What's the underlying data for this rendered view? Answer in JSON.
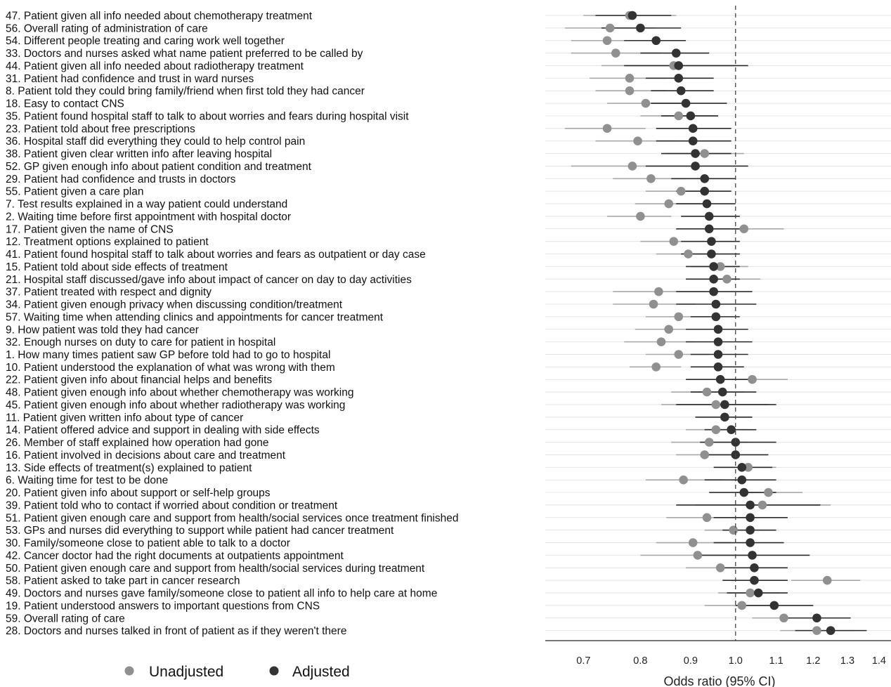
{
  "chart_data": {
    "type": "forest",
    "xlabel": "Odds ratio (95% CI)",
    "xticks": [
      0.7,
      0.8,
      0.9,
      1.0,
      1.1,
      1.2,
      1.3,
      1.4
    ],
    "reference_line": 1.0,
    "scale": "log",
    "legend": {
      "position": "bottom-left",
      "items": [
        {
          "name": "Unadjusted",
          "color": "#909090"
        },
        {
          "name": "Adjusted",
          "color": "#333333"
        }
      ]
    },
    "rows": [
      {
        "label": "47.  Patient given all info needed about chemotherapy treatment",
        "unadj": [
          0.78,
          0.7,
          0.87
        ],
        "adj": [
          0.785,
          0.72,
          0.86
        ]
      },
      {
        "label": "56.  Overall rating of administration of care",
        "unadj": [
          0.745,
          0.67,
          0.83
        ],
        "adj": [
          0.8,
          0.73,
          0.88
        ]
      },
      {
        "label": "54.  Different people treating and caring work well together",
        "unadj": [
          0.74,
          0.68,
          0.81
        ],
        "adj": [
          0.83,
          0.77,
          0.89
        ]
      },
      {
        "label": "33.  Doctors and nurses asked what name patient preferred to be called by",
        "unadj": [
          0.755,
          0.68,
          0.84
        ],
        "adj": [
          0.87,
          0.8,
          0.94
        ]
      },
      {
        "label": "44.  Patient given all info needed about radiotherapy treatment",
        "unadj": [
          0.865,
          0.73,
          1.0
        ],
        "adj": [
          0.875,
          0.77,
          1.03
        ]
      },
      {
        "label": "31.  Patient had confidence and trust in ward nurses",
        "unadj": [
          0.78,
          0.71,
          0.85
        ],
        "adj": [
          0.875,
          0.81,
          0.95
        ]
      },
      {
        "label": " 8.  Patient told they could bring family/friend when first told they had cancer",
        "unadj": [
          0.78,
          0.72,
          0.85
        ],
        "adj": [
          0.88,
          0.82,
          0.95
        ]
      },
      {
        "label": "18.  Easy to contact CNS",
        "unadj": [
          0.81,
          0.74,
          0.88
        ],
        "adj": [
          0.89,
          0.82,
          0.98
        ]
      },
      {
        "label": "35.  Patient found hospital staff to talk to about worries and fears during hospital visit",
        "unadj": [
          0.875,
          0.8,
          0.96
        ],
        "adj": [
          0.9,
          0.84,
          0.96
        ]
      },
      {
        "label": "23.  Patient told about free prescriptions",
        "unadj": [
          0.74,
          0.67,
          0.81
        ],
        "adj": [
          0.905,
          0.83,
          0.99
        ]
      },
      {
        "label": "36.  Hospital staff did everything they could to help control pain",
        "unadj": [
          0.795,
          0.72,
          0.87
        ],
        "adj": [
          0.905,
          0.83,
          0.99
        ]
      },
      {
        "label": "38.  Patient given clear written info after leaving hospital",
        "unadj": [
          0.93,
          0.85,
          1.02
        ],
        "adj": [
          0.91,
          0.84,
          0.99
        ]
      },
      {
        "label": "52.  GP given enough info about patient condition and treatment",
        "unadj": [
          0.785,
          0.68,
          0.9
        ],
        "adj": [
          0.91,
          0.81,
          1.03
        ]
      },
      {
        "label": "29.  Patient had confidence and trusts in doctors",
        "unadj": [
          0.82,
          0.75,
          0.89
        ],
        "adj": [
          0.93,
          0.86,
          1.0
        ]
      },
      {
        "label": "55.  Patient given a care plan",
        "unadj": [
          0.88,
          0.81,
          0.95
        ],
        "adj": [
          0.93,
          0.87,
          0.99
        ]
      },
      {
        "label": " 7.  Test results explained in a way patient could understand",
        "unadj": [
          0.855,
          0.79,
          0.92
        ],
        "adj": [
          0.935,
          0.87,
          1.0
        ]
      },
      {
        "label": " 2.  Waiting time before first appointment with hospital doctor",
        "unadj": [
          0.8,
          0.74,
          0.86
        ],
        "adj": [
          0.94,
          0.88,
          1.01
        ]
      },
      {
        "label": "17.  Patient given the name of CNS",
        "unadj": [
          1.02,
          0.93,
          1.12
        ],
        "adj": [
          0.94,
          0.87,
          1.02
        ]
      },
      {
        "label": "12.  Treatment options explained to patient",
        "unadj": [
          0.865,
          0.8,
          0.93
        ],
        "adj": [
          0.945,
          0.88,
          1.01
        ]
      },
      {
        "label": "41.  Patient found hospital staff to talk about worries and fears as outpatient or day case",
        "unadj": [
          0.895,
          0.83,
          0.96
        ],
        "adj": [
          0.945,
          0.88,
          1.01
        ]
      },
      {
        "label": "15.  Patient told about side effects of treatment",
        "unadj": [
          0.965,
          0.9,
          1.03
        ],
        "adj": [
          0.95,
          0.89,
          1.01
        ]
      },
      {
        "label": "21.  Hospital staff discussed/gave info about impact of cancer on day to day activities",
        "unadj": [
          0.98,
          0.9,
          1.06
        ],
        "adj": [
          0.95,
          0.89,
          1.01
        ]
      },
      {
        "label": "37.  Patient treated with respect and dignity",
        "unadj": [
          0.835,
          0.75,
          0.93
        ],
        "adj": [
          0.95,
          0.87,
          1.04
        ]
      },
      {
        "label": "34.  Patient given enough privacy when discussing condition/treatment",
        "unadj": [
          0.825,
          0.75,
          0.91
        ],
        "adj": [
          0.955,
          0.87,
          1.05
        ]
      },
      {
        "label": "57.  Waiting time when attending clinics and appointments for cancer treatment",
        "unadj": [
          0.875,
          0.81,
          0.94
        ],
        "adj": [
          0.955,
          0.9,
          1.01
        ]
      },
      {
        "label": " 9.  How patient was told they had cancer",
        "unadj": [
          0.855,
          0.79,
          0.92
        ],
        "adj": [
          0.96,
          0.89,
          1.03
        ]
      },
      {
        "label": "32.  Enough nurses on duty to care for patient in hospital",
        "unadj": [
          0.84,
          0.77,
          0.91
        ],
        "adj": [
          0.96,
          0.89,
          1.04
        ]
      },
      {
        "label": " 1.  How many times patient saw GP before told had to go to hospital",
        "unadj": [
          0.875,
          0.81,
          0.94
        ],
        "adj": [
          0.96,
          0.9,
          1.03
        ]
      },
      {
        "label": "10.  Patient understood the explanation of what was wrong with them",
        "unadj": [
          0.83,
          0.78,
          0.88
        ],
        "adj": [
          0.96,
          0.9,
          1.02
        ]
      },
      {
        "label": "22.  Patient given info about financial helps and benefits",
        "unadj": [
          1.04,
          0.96,
          1.13
        ],
        "adj": [
          0.965,
          0.89,
          1.05
        ]
      },
      {
        "label": "48.  Patient given enough info about whether chemotherapy was working",
        "unadj": [
          0.935,
          0.86,
          1.02
        ],
        "adj": [
          0.97,
          0.9,
          1.05
        ]
      },
      {
        "label": "45.  Patient given enough info about whether radiotherapy was working",
        "unadj": [
          0.955,
          0.84,
          1.08
        ],
        "adj": [
          0.975,
          0.87,
          1.1
        ]
      },
      {
        "label": "11.  Patient given written info about type of cancer",
        "unadj": [
          0.975,
          0.91,
          1.04
        ],
        "adj": [
          0.975,
          0.91,
          1.04
        ]
      },
      {
        "label": "14.  Patient offered advice and support in dealing with side effects",
        "unadj": [
          0.955,
          0.89,
          1.02
        ],
        "adj": [
          0.99,
          0.93,
          1.05
        ]
      },
      {
        "label": "26.  Member of staff explained how operation had gone",
        "unadj": [
          0.94,
          0.86,
          1.03
        ],
        "adj": [
          1.0,
          0.92,
          1.1
        ]
      },
      {
        "label": "16.  Patient involved in decisions about care and treatment",
        "unadj": [
          0.93,
          0.87,
          1.0
        ],
        "adj": [
          1.0,
          0.93,
          1.08
        ]
      },
      {
        "label": "13.  Side effects of treatment(s) explained to patient",
        "unadj": [
          1.03,
          0.96,
          1.1
        ],
        "adj": [
          1.015,
          0.95,
          1.09
        ]
      },
      {
        "label": " 6.  Waiting time for test to be done",
        "unadj": [
          0.885,
          0.81,
          0.97
        ],
        "adj": [
          1.015,
          0.93,
          1.1
        ]
      },
      {
        "label": "20.  Patient given info about support or self-help groups",
        "unadj": [
          1.08,
          1.0,
          1.17
        ],
        "adj": [
          1.02,
          0.94,
          1.1
        ]
      },
      {
        "label": "39.  Patient told who to contact if worried about condition or treatment",
        "unadj": [
          1.065,
          0.91,
          1.25
        ],
        "adj": [
          1.035,
          0.87,
          1.22
        ]
      },
      {
        "label": "51.  Patient given enough care and support from health/social services once treatment finished",
        "unadj": [
          0.935,
          0.85,
          1.03
        ],
        "adj": [
          1.035,
          0.95,
          1.13
        ]
      },
      {
        "label": "53.  GPs and nurses did everything to support while patient had cancer treatment",
        "unadj": [
          0.995,
          0.93,
          1.06
        ],
        "adj": [
          1.035,
          0.97,
          1.1
        ]
      },
      {
        "label": "30.  Family/someone close to patient able to talk to a doctor",
        "unadj": [
          0.905,
          0.83,
          0.99
        ],
        "adj": [
          1.035,
          0.95,
          1.12
        ]
      },
      {
        "label": "42.  Cancer doctor had the right documents at outpatients appointment",
        "unadj": [
          0.915,
          0.8,
          1.05
        ],
        "adj": [
          1.04,
          0.91,
          1.19
        ]
      },
      {
        "label": "50.  Patient given enough care and support from health/social services during treatment",
        "unadj": [
          0.965,
          0.89,
          1.05
        ],
        "adj": [
          1.045,
          0.97,
          1.13
        ]
      },
      {
        "label": "58.  Patient asked to take part in cancer research",
        "unadj": [
          1.24,
          1.14,
          1.34
        ],
        "adj": [
          1.045,
          0.97,
          1.13
        ]
      },
      {
        "label": "49.  Doctors and nurses gave family/someone close to patient all info to help care at home",
        "unadj": [
          1.035,
          0.96,
          1.11
        ],
        "adj": [
          1.055,
          0.98,
          1.13
        ]
      },
      {
        "label": "19.  Patient understood answers to important questions from CNS",
        "unadj": [
          1.015,
          0.93,
          1.1
        ],
        "adj": [
          1.095,
          1.0,
          1.2
        ]
      },
      {
        "label": "59.  Overall rating of care",
        "unadj": [
          1.12,
          1.04,
          1.21
        ],
        "adj": [
          1.21,
          1.12,
          1.31
        ]
      },
      {
        "label": "28.  Doctors and nurses talked in front of patient as if they weren't there",
        "unadj": [
          1.21,
          1.11,
          1.32
        ],
        "adj": [
          1.25,
          1.15,
          1.36
        ]
      }
    ]
  }
}
